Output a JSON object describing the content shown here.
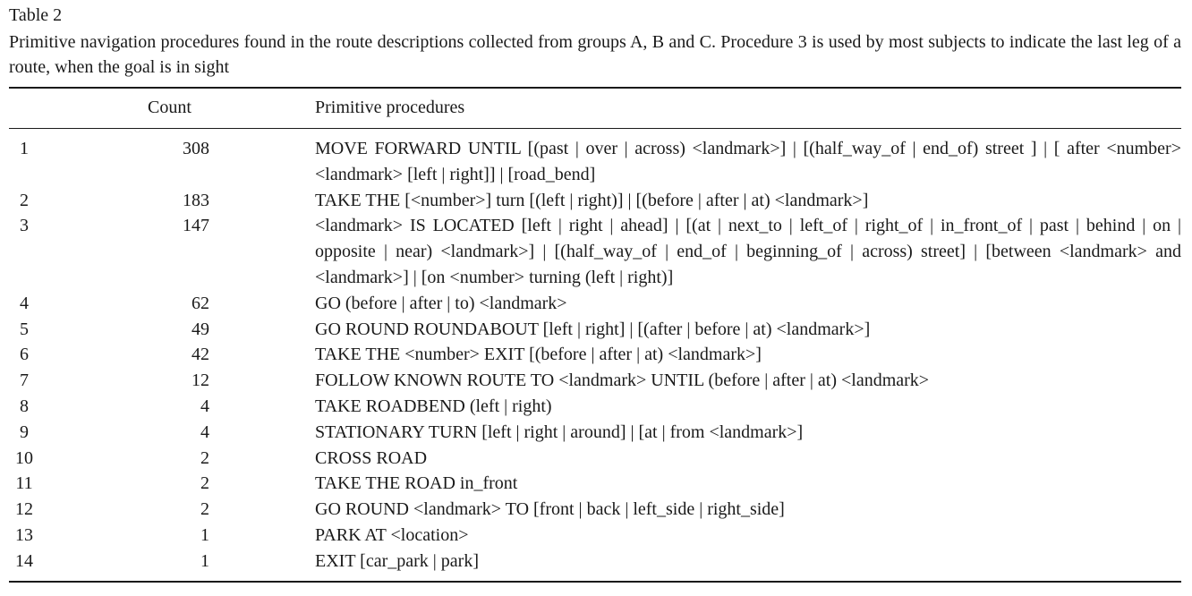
{
  "table": {
    "label": "Table 2",
    "caption": "Primitive navigation procedures found in the route descriptions collected from groups A, B and C. Procedure 3 is used by most subjects to indicate the last leg of a route, when the goal is in sight",
    "headers": {
      "number": "",
      "count": "Count",
      "procedures": "Primitive procedures"
    },
    "rows": [
      {
        "num": "1",
        "count": "308",
        "proc": "MOVE FORWARD UNTIL [(past | over | across) <landmark>] | [(half_way_of | end_of) street ] | [ after <number><landmark> [left | right]] | [road_bend]"
      },
      {
        "num": "2",
        "count": "183",
        "proc": "TAKE THE [<number>] turn [(left | right)] | [(before | after | at) <landmark>]"
      },
      {
        "num": "3",
        "count": "147",
        "proc": "<landmark> IS LOCATED [left | right | ahead] | [(at | next_to | left_of | right_of | in_front_of | past | behind | on | opposite | near) <landmark>] | [(half_way_of | end_of | beginning_of | across) street] | [between <landmark> and <landmark>] | [on <number> turning (left | right)]"
      },
      {
        "num": "4",
        "count": "62",
        "proc": "GO (before | after | to) <landmark>"
      },
      {
        "num": "5",
        "count": "49",
        "proc": "GO ROUND ROUNDABOUT [left | right] | [(after | before | at) <landmark>]"
      },
      {
        "num": "6",
        "count": "42",
        "proc": "TAKE THE <number> EXIT [(before | after | at) <landmark>]"
      },
      {
        "num": "7",
        "count": "12",
        "proc": "FOLLOW KNOWN ROUTE TO <landmark> UNTIL (before | after | at) <landmark>"
      },
      {
        "num": "8",
        "count": "4",
        "proc": "TAKE ROADBEND (left | right)"
      },
      {
        "num": "9",
        "count": "4",
        "proc": "STATIONARY TURN [left | right | around] | [at | from <landmark>]"
      },
      {
        "num": "10",
        "count": "2",
        "proc": "CROSS ROAD"
      },
      {
        "num": "11",
        "count": "2",
        "proc": "TAKE THE ROAD in_front"
      },
      {
        "num": "12",
        "count": "2",
        "proc": "GO ROUND <landmark> TO [front | back | left_side | right_side]"
      },
      {
        "num": "13",
        "count": "1",
        "proc": "PARK AT <location>"
      },
      {
        "num": "14",
        "count": "1",
        "proc": "EXIT [car_park | park]"
      }
    ]
  }
}
